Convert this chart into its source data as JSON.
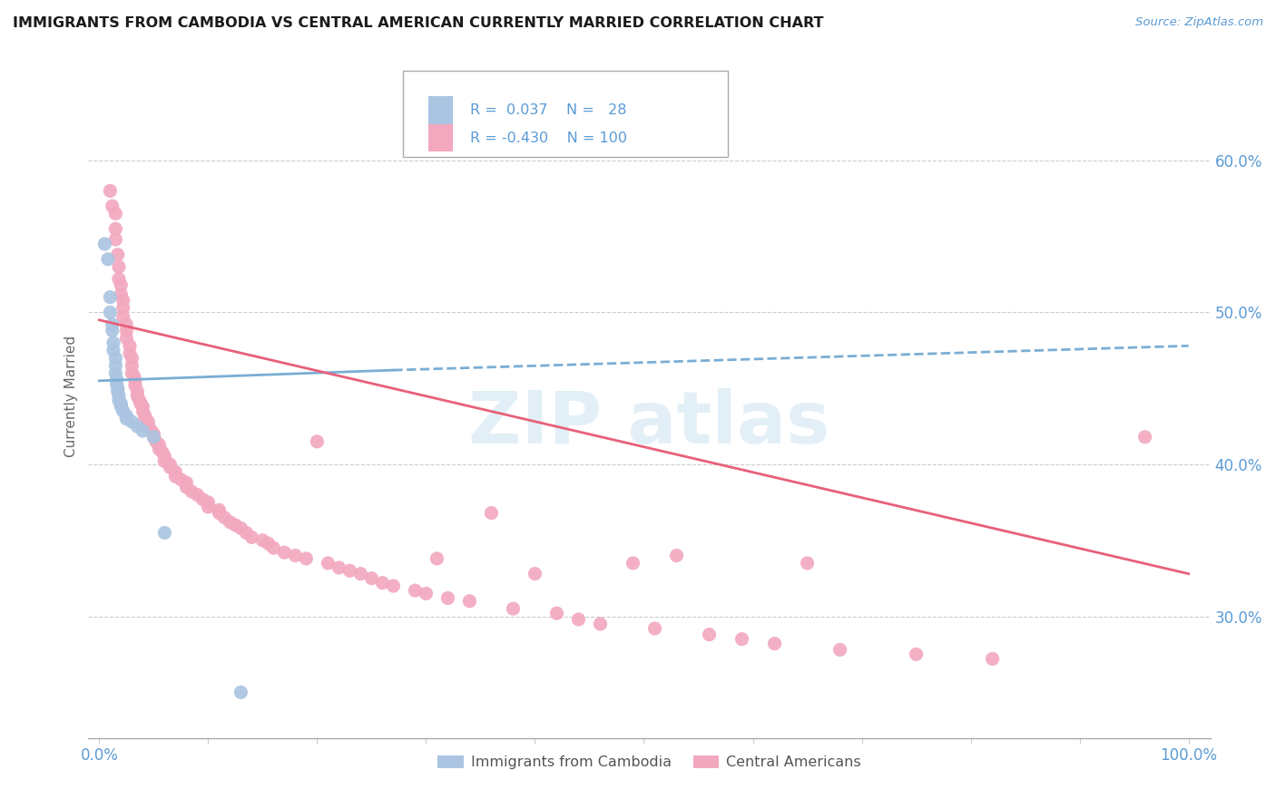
{
  "title": "IMMIGRANTS FROM CAMBODIA VS CENTRAL AMERICAN CURRENTLY MARRIED CORRELATION CHART",
  "source_text": "Source: ZipAtlas.com",
  "ylabel": "Currently Married",
  "legend_labels": [
    "Immigrants from Cambodia",
    "Central Americans"
  ],
  "y_tick_values": [
    0.3,
    0.4,
    0.5,
    0.6
  ],
  "color_blue": "#aac4e2",
  "color_pink": "#f2a8be",
  "line_blue_solid": "#7aadd4",
  "line_blue_dash": "#7aadd4",
  "line_pink": "#e8607a",
  "grid_color": "#cccccc",
  "xlim": [
    -0.01,
    1.02
  ],
  "ylim": [
    0.22,
    0.67
  ],
  "blue_line": [
    [
      0.0,
      0.455
    ],
    [
      0.27,
      0.462
    ],
    [
      1.0,
      0.478
    ]
  ],
  "pink_line": [
    [
      0.0,
      0.495
    ],
    [
      1.0,
      0.328
    ]
  ],
  "cambodia_points": [
    [
      0.005,
      0.545
    ],
    [
      0.008,
      0.535
    ],
    [
      0.01,
      0.5
    ],
    [
      0.01,
      0.51
    ],
    [
      0.012,
      0.492
    ],
    [
      0.012,
      0.488
    ],
    [
      0.013,
      0.48
    ],
    [
      0.013,
      0.475
    ],
    [
      0.015,
      0.47
    ],
    [
      0.015,
      0.465
    ],
    [
      0.015,
      0.46
    ],
    [
      0.016,
      0.456
    ],
    [
      0.016,
      0.453
    ],
    [
      0.017,
      0.45
    ],
    [
      0.017,
      0.448
    ],
    [
      0.018,
      0.445
    ],
    [
      0.018,
      0.442
    ],
    [
      0.02,
      0.44
    ],
    [
      0.02,
      0.438
    ],
    [
      0.022,
      0.435
    ],
    [
      0.025,
      0.432
    ],
    [
      0.025,
      0.43
    ],
    [
      0.03,
      0.428
    ],
    [
      0.035,
      0.425
    ],
    [
      0.04,
      0.422
    ],
    [
      0.05,
      0.418
    ],
    [
      0.06,
      0.355
    ],
    [
      0.13,
      0.25
    ]
  ],
  "central_american_points": [
    [
      0.01,
      0.58
    ],
    [
      0.012,
      0.57
    ],
    [
      0.015,
      0.565
    ],
    [
      0.015,
      0.555
    ],
    [
      0.015,
      0.548
    ],
    [
      0.017,
      0.538
    ],
    [
      0.018,
      0.53
    ],
    [
      0.018,
      0.522
    ],
    [
      0.02,
      0.518
    ],
    [
      0.02,
      0.512
    ],
    [
      0.022,
      0.508
    ],
    [
      0.022,
      0.503
    ],
    [
      0.022,
      0.497
    ],
    [
      0.025,
      0.492
    ],
    [
      0.025,
      0.488
    ],
    [
      0.025,
      0.483
    ],
    [
      0.028,
      0.478
    ],
    [
      0.028,
      0.473
    ],
    [
      0.03,
      0.47
    ],
    [
      0.03,
      0.465
    ],
    [
      0.03,
      0.46
    ],
    [
      0.032,
      0.458
    ],
    [
      0.033,
      0.455
    ],
    [
      0.033,
      0.452
    ],
    [
      0.035,
      0.448
    ],
    [
      0.035,
      0.445
    ],
    [
      0.037,
      0.442
    ],
    [
      0.038,
      0.44
    ],
    [
      0.04,
      0.438
    ],
    [
      0.04,
      0.435
    ],
    [
      0.042,
      0.432
    ],
    [
      0.042,
      0.43
    ],
    [
      0.045,
      0.428
    ],
    [
      0.045,
      0.425
    ],
    [
      0.048,
      0.422
    ],
    [
      0.05,
      0.42
    ],
    [
      0.05,
      0.418
    ],
    [
      0.052,
      0.415
    ],
    [
      0.055,
      0.413
    ],
    [
      0.055,
      0.41
    ],
    [
      0.058,
      0.408
    ],
    [
      0.06,
      0.405
    ],
    [
      0.06,
      0.402
    ],
    [
      0.065,
      0.4
    ],
    [
      0.065,
      0.398
    ],
    [
      0.07,
      0.395
    ],
    [
      0.07,
      0.392
    ],
    [
      0.075,
      0.39
    ],
    [
      0.08,
      0.388
    ],
    [
      0.08,
      0.385
    ],
    [
      0.085,
      0.382
    ],
    [
      0.09,
      0.38
    ],
    [
      0.095,
      0.377
    ],
    [
      0.1,
      0.375
    ],
    [
      0.1,
      0.372
    ],
    [
      0.11,
      0.37
    ],
    [
      0.11,
      0.368
    ],
    [
      0.115,
      0.365
    ],
    [
      0.12,
      0.362
    ],
    [
      0.125,
      0.36
    ],
    [
      0.13,
      0.358
    ],
    [
      0.135,
      0.355
    ],
    [
      0.14,
      0.352
    ],
    [
      0.15,
      0.35
    ],
    [
      0.155,
      0.348
    ],
    [
      0.16,
      0.345
    ],
    [
      0.17,
      0.342
    ],
    [
      0.18,
      0.34
    ],
    [
      0.19,
      0.338
    ],
    [
      0.2,
      0.415
    ],
    [
      0.21,
      0.335
    ],
    [
      0.22,
      0.332
    ],
    [
      0.23,
      0.33
    ],
    [
      0.24,
      0.328
    ],
    [
      0.25,
      0.325
    ],
    [
      0.26,
      0.322
    ],
    [
      0.27,
      0.32
    ],
    [
      0.29,
      0.317
    ],
    [
      0.3,
      0.315
    ],
    [
      0.31,
      0.338
    ],
    [
      0.32,
      0.312
    ],
    [
      0.34,
      0.31
    ],
    [
      0.36,
      0.368
    ],
    [
      0.38,
      0.305
    ],
    [
      0.4,
      0.328
    ],
    [
      0.42,
      0.302
    ],
    [
      0.44,
      0.298
    ],
    [
      0.46,
      0.295
    ],
    [
      0.49,
      0.335
    ],
    [
      0.51,
      0.292
    ],
    [
      0.53,
      0.34
    ],
    [
      0.56,
      0.288
    ],
    [
      0.59,
      0.285
    ],
    [
      0.62,
      0.282
    ],
    [
      0.65,
      0.335
    ],
    [
      0.68,
      0.278
    ],
    [
      0.75,
      0.275
    ],
    [
      0.82,
      0.272
    ],
    [
      0.96,
      0.418
    ]
  ]
}
